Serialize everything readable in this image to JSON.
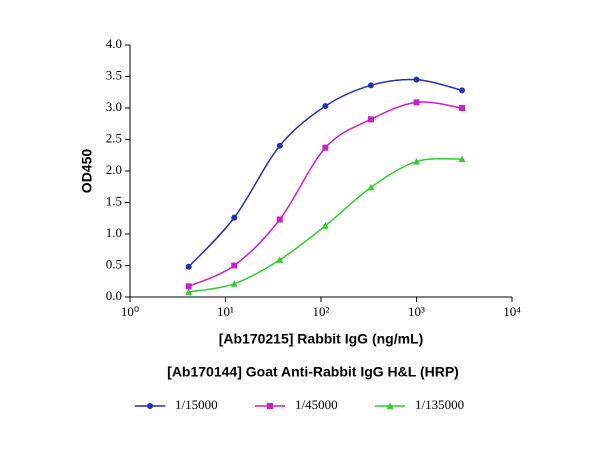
{
  "chart_data": {
    "type": "scatter",
    "xlabel": "[Ab170215] Rabbit IgG (ng/mL)",
    "subtitle": "[Ab170144] Goat Anti-Rabbit IgG H&L (HRP)",
    "ylabel": "OD450",
    "x": [
      4.115,
      12.35,
      37.04,
      111.1,
      333.3,
      1000,
      3000
    ],
    "xscale": "log",
    "xlim": [
      1,
      10000
    ],
    "xticks": [
      {
        "value": 1,
        "label": "10⁰"
      },
      {
        "value": 10,
        "label": "10¹"
      },
      {
        "value": 100,
        "label": "10²"
      },
      {
        "value": 1000,
        "label": "10³"
      },
      {
        "value": 10000,
        "label": "10⁴"
      }
    ],
    "ylim": [
      0,
      4
    ],
    "yticks": [
      {
        "value": 0,
        "label": "0.0"
      },
      0.5,
      {
        "value": 1,
        "label": "1.0"
      },
      1.5,
      {
        "value": 2,
        "label": "2.0"
      },
      2.5,
      {
        "value": 3,
        "label": "3.0"
      },
      3.5,
      {
        "value": 4,
        "label": "4.0"
      }
    ],
    "legend": "bottom",
    "series": [
      {
        "name": "1/15000",
        "color": "#1f2fbf",
        "marker": "circle",
        "values": [
          0.48,
          1.26,
          2.4,
          3.03,
          3.36,
          3.45,
          3.28
        ]
      },
      {
        "name": "1/45000",
        "color": "#cc1fcc",
        "marker": "square",
        "values": [
          0.17,
          0.5,
          1.23,
          2.37,
          2.82,
          3.09,
          3.0
        ]
      },
      {
        "name": "1/135000",
        "color": "#2fcf2f",
        "marker": "triangle",
        "values": [
          0.08,
          0.21,
          0.59,
          1.13,
          1.74,
          2.15,
          2.19
        ]
      }
    ]
  }
}
